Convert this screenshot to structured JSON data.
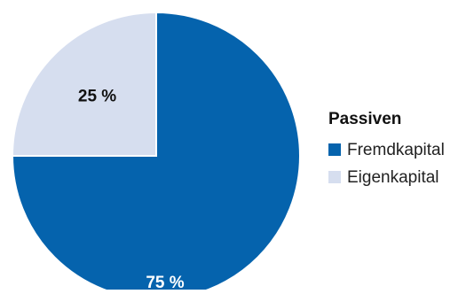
{
  "chart_data": {
    "type": "pie",
    "slices": [
      {
        "label": "Fremdkapital",
        "value": 75,
        "display": "75 %",
        "color": "#0563ad",
        "label_color": "#ffffff"
      },
      {
        "label": "Eigenkapital",
        "value": 25,
        "display": "25 %",
        "color": "#d6deef",
        "label_color": "#111111"
      }
    ],
    "legend": {
      "title": "Passiven",
      "placement": "right",
      "items": [
        {
          "label": "Fremdkapital",
          "color": "#0563ad"
        },
        {
          "label": "Eigenkapital",
          "color": "#d6deef"
        }
      ]
    },
    "start": "12 o'clock",
    "direction": "clockwise"
  }
}
